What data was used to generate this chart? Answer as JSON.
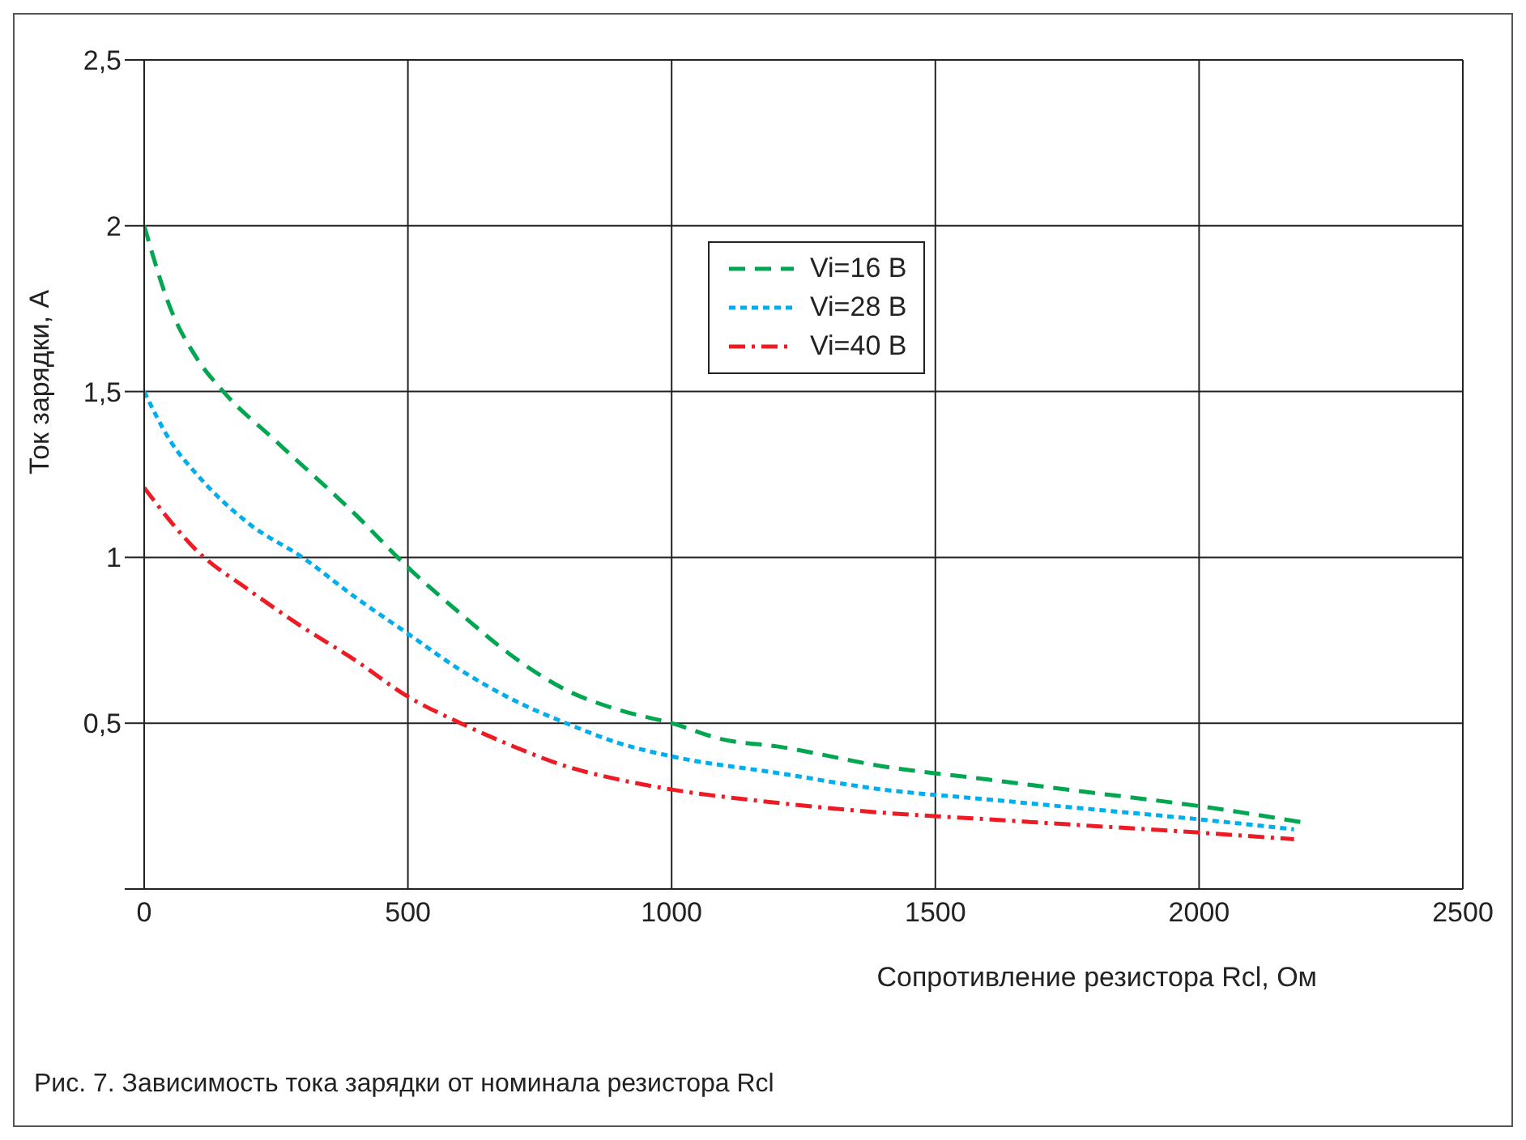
{
  "chart_data": {
    "type": "line",
    "xlabel": "Сопротивление резистора Rcl, Ом",
    "ylabel": "Ток зарядки, А",
    "annotations": [
      "Рис. 7. Зависимость тока зарядки от номинала резистора Rcl"
    ],
    "xlim": [
      0,
      2500
    ],
    "xticks": [
      0,
      500,
      1000,
      1500,
      2000,
      2500
    ],
    "ylim": [
      0,
      2.5
    ],
    "yticks": [
      {
        "value": 0,
        "label": null
      },
      {
        "value": 0.5,
        "label": "0,5"
      },
      1,
      {
        "value": 1.5,
        "label": "1,5"
      },
      2,
      {
        "value": 2.5,
        "label": "2,5"
      }
    ],
    "grid": true,
    "legend": "top",
    "marker": "none",
    "series": [
      {
        "name": "Vi=16 В",
        "color": "#00a650",
        "line_style": "dashed",
        "x": [
          0,
          50,
          100,
          150,
          250,
          400,
          500,
          600,
          700,
          800,
          900,
          1000,
          1100,
          1200,
          1400,
          1600,
          1800,
          2000,
          2200
        ],
        "values": [
          2.0,
          1.75,
          1.6,
          1.5,
          1.35,
          1.13,
          0.97,
          0.83,
          0.7,
          0.6,
          0.54,
          0.5,
          0.45,
          0.43,
          0.37,
          0.33,
          0.29,
          0.25,
          0.2
        ]
      },
      {
        "name": "Vi=28 В",
        "color": "#00aeef",
        "line_style": "dotted",
        "x": [
          0,
          50,
          100,
          200,
          300,
          400,
          500,
          600,
          700,
          800,
          900,
          1000,
          1200,
          1400,
          1600,
          1800,
          2000,
          2180
        ],
        "values": [
          1.5,
          1.35,
          1.25,
          1.1,
          1.0,
          0.88,
          0.77,
          0.66,
          0.57,
          0.5,
          0.44,
          0.4,
          0.35,
          0.3,
          0.27,
          0.24,
          0.21,
          0.18
        ]
      },
      {
        "name": "Vi=40 В",
        "color": "#ed1c24",
        "line_style": "dashdot",
        "x": [
          0,
          100,
          200,
          300,
          400,
          500,
          600,
          700,
          800,
          900,
          1000,
          1200,
          1400,
          1600,
          1800,
          2000,
          2180
        ],
        "values": [
          1.21,
          1.02,
          0.9,
          0.79,
          0.69,
          0.58,
          0.5,
          0.43,
          0.37,
          0.33,
          0.3,
          0.26,
          0.23,
          0.21,
          0.19,
          0.17,
          0.15
        ]
      }
    ]
  }
}
